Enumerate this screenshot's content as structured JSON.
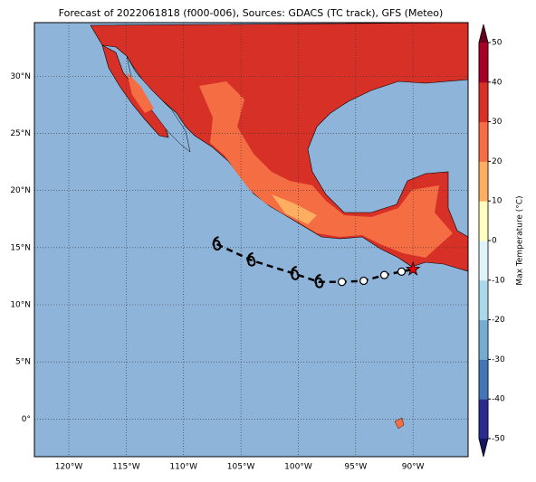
{
  "title": "Forecast of 2022061818 (f000-006), Sources: GDACS (TC track), GFS (Meteo)",
  "map": {
    "lonlim": [
      -123,
      -85.2
    ],
    "latlim": [
      -3.3,
      34.7
    ],
    "xticks": [
      {
        "value": -120,
        "label": "120°W"
      },
      {
        "value": -115,
        "label": "115°W"
      },
      {
        "value": -110,
        "label": "110°W"
      },
      {
        "value": -105,
        "label": "105°W"
      },
      {
        "value": -100,
        "label": "100°W"
      },
      {
        "value": -95,
        "label": "95°W"
      },
      {
        "value": -90,
        "label": "90°W"
      }
    ],
    "yticks": [
      {
        "value": 0,
        "label": "0°"
      },
      {
        "value": 5,
        "label": "5°N"
      },
      {
        "value": 10,
        "label": "10°N"
      },
      {
        "value": 15,
        "label": "15°N"
      },
      {
        "value": 20,
        "label": "20°N"
      },
      {
        "value": 25,
        "label": "25°N"
      },
      {
        "value": 30,
        "label": "30°N"
      }
    ],
    "track": {
      "lon": [
        -107.1,
        -104.1,
        -100.3,
        -98.2,
        -96.2,
        -94.3,
        -92.5,
        -91.0,
        -90.0
      ],
      "lat": [
        15.3,
        13.9,
        12.7,
        12.0,
        12.0,
        12.1,
        12.6,
        12.9,
        13.1
      ],
      "markers": [
        "hurricane",
        "hurricane",
        "hurricane",
        "hurricane",
        "circle",
        "circle",
        "circle",
        "circle",
        "star"
      ]
    }
  },
  "colorbar": {
    "label": "Max Temperature (°C)",
    "lim": [
      -50,
      50
    ],
    "ticks": [
      -50,
      -40,
      -30,
      -20,
      -10,
      0,
      10,
      20,
      30,
      40,
      50
    ],
    "colors": [
      "#2b2b8f",
      "#4575b4",
      "#74add1",
      "#abd9e9",
      "#e0f3f8",
      "#ffffbf",
      "#fdae61",
      "#f46d43",
      "#d73027",
      "#a50026"
    ],
    "under_color": "#16165e",
    "over_color": "#67001f"
  }
}
